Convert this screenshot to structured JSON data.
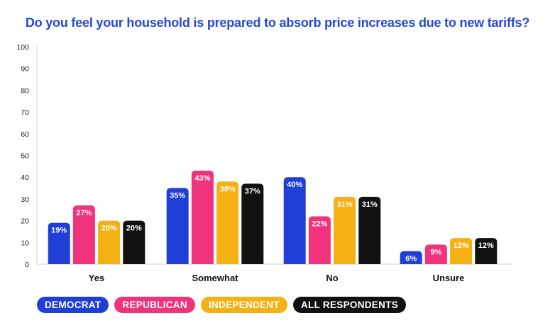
{
  "chart_data": {
    "type": "bar",
    "title": "Do you feel your household is prepared to absorb price increases due to new tariffs?",
    "categories": [
      "Yes",
      "Somewhat",
      "No",
      "Unsure"
    ],
    "series": [
      {
        "name": "DEMOCRAT",
        "color": "#1f3fd6",
        "values": [
          19,
          35,
          40,
          6
        ],
        "labels": [
          "19%",
          "35%",
          "40%",
          "6%"
        ]
      },
      {
        "name": "REPUBLICAN",
        "color": "#f1327c",
        "values": [
          27,
          43,
          22,
          9
        ],
        "labels": [
          "27%",
          "43%",
          "22%",
          "9%"
        ]
      },
      {
        "name": "INDEPENDENT",
        "color": "#f5b014",
        "values": [
          20,
          38,
          31,
          12
        ],
        "labels": [
          "20%",
          "38%",
          "31%",
          "12%"
        ]
      },
      {
        "name": "ALL RESPONDENTS",
        "color": "#111111",
        "values": [
          20,
          37,
          31,
          12
        ],
        "labels": [
          "20%",
          "37%",
          "31%",
          "12%"
        ]
      }
    ],
    "ylim": [
      0,
      100
    ],
    "yticks": [
      "0",
      "10",
      "20",
      "30",
      "40",
      "50",
      "60",
      "70",
      "80",
      "90",
      "100"
    ],
    "xlabel": "",
    "ylabel": "",
    "grid": false,
    "legend": "bottom-left"
  }
}
